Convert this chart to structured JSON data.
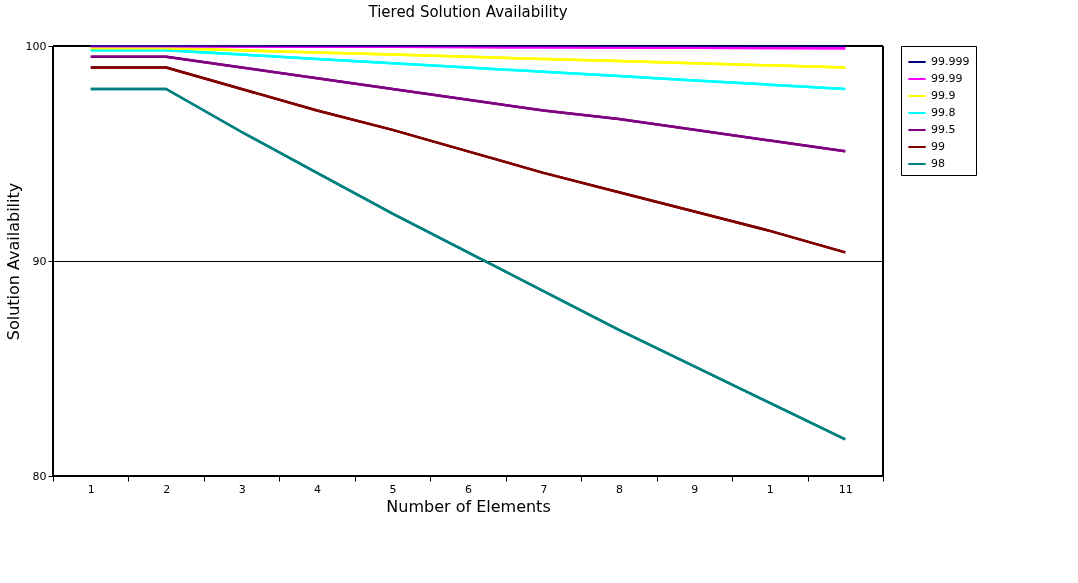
{
  "chart_data": {
    "type": "line",
    "title": "Tiered Solution Availability",
    "xlabel": "Number of Elements",
    "ylabel": "Solution Availability",
    "categories": [
      "1",
      "2",
      "3",
      "4",
      "5",
      "6",
      "7",
      "8",
      "9",
      "1",
      "11"
    ],
    "ylim": [
      80,
      100
    ],
    "yticks": [
      80,
      90,
      100
    ],
    "grid": "y",
    "legend": "right",
    "marker": "none",
    "line_style": "solid",
    "series": [
      {
        "name": "99.999",
        "color": "#000080",
        "values": [
          100,
          100,
          100,
          100,
          100,
          100,
          100,
          100,
          100,
          100,
          100
        ]
      },
      {
        "name": "99.99",
        "color": "#ff00ff",
        "values": [
          99.99,
          99.99,
          99.98,
          99.97,
          99.96,
          99.95,
          99.94,
          99.93,
          99.92,
          99.91,
          99.9
        ]
      },
      {
        "name": "99.9",
        "color": "#ffff00",
        "values": [
          99.9,
          99.9,
          99.8,
          99.7,
          99.6,
          99.5,
          99.4,
          99.3,
          99.2,
          99.1,
          99.0
        ]
      },
      {
        "name": "99.8",
        "color": "#00ffff",
        "values": [
          99.8,
          99.8,
          99.6,
          99.4,
          99.2,
          99.0,
          98.8,
          98.6,
          98.4,
          98.2,
          98.0
        ]
      },
      {
        "name": "99.5",
        "color": "#800080",
        "values": [
          99.5,
          99.5,
          99.0,
          98.5,
          98.0,
          97.5,
          97.0,
          96.6,
          96.1,
          95.6,
          95.1
        ]
      },
      {
        "name": "99",
        "color": "#800000",
        "values": [
          99.0,
          99.0,
          98.0,
          97.0,
          96.1,
          95.1,
          94.1,
          93.2,
          92.3,
          91.4,
          90.4
        ]
      },
      {
        "name": "98",
        "color": "#008080",
        "values": [
          98.0,
          98.0,
          96.0,
          94.1,
          92.2,
          90.4,
          88.6,
          86.8,
          85.1,
          83.4,
          81.7
        ]
      }
    ]
  }
}
